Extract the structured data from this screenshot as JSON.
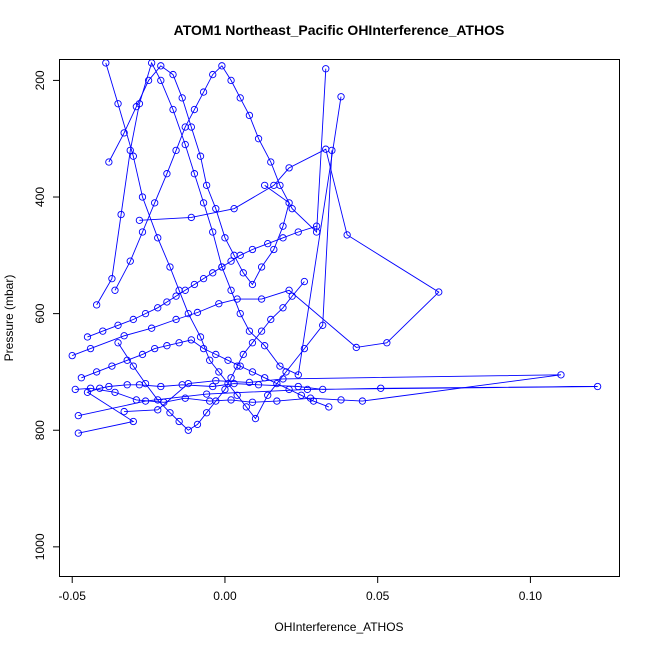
{
  "chart_data": {
    "type": "line",
    "title": "ATOM1 Northeast_Pacific OHInterference_ATHOS",
    "xlabel": "OHInterference_ATHOS",
    "ylabel": "Pressure (mbar)",
    "xlim": [
      -0.054,
      0.129
    ],
    "ylim": [
      1050,
      165
    ],
    "y_reversed": true,
    "x_ticks": [
      -0.05,
      0.0,
      0.05,
      0.1
    ],
    "x_tick_labels": [
      "-0.05",
      "0.00",
      "0.05",
      "0.10"
    ],
    "y_ticks": [
      200,
      400,
      600,
      800,
      1000
    ],
    "y_tick_labels": [
      "200",
      "400",
      "600",
      "800",
      "1000"
    ],
    "grid": false,
    "series_color": "#0000ff",
    "marker": "open-circle",
    "series": [
      {
        "x": [
          -0.048,
          -0.03,
          -0.045,
          -0.041,
          -0.038,
          -0.032,
          -0.028,
          -0.021,
          -0.014,
          -0.004,
          0.003,
          0.011,
          0.024,
          0.032,
          0.051,
          0.122,
          0.027,
          -0.006,
          -0.026,
          -0.048
        ],
        "y": [
          805,
          785,
          735,
          728,
          725,
          722,
          722,
          725,
          722,
          725,
          720,
          722,
          725,
          730,
          728,
          725,
          730,
          738,
          750,
          775
        ]
      },
      {
        "x": [
          -0.049,
          -0.044,
          -0.036,
          -0.029,
          -0.02,
          -0.013,
          -0.005,
          0.002,
          0.009,
          0.017,
          0.028,
          0.038,
          0.045,
          0.11,
          0.019,
          0.008,
          -0.003,
          -0.012,
          -0.022,
          -0.033
        ],
        "y": [
          730,
          728,
          735,
          748,
          752,
          745,
          750,
          748,
          752,
          750,
          745,
          748,
          750,
          705,
          712,
          718,
          715,
          720,
          765,
          768
        ]
      },
      {
        "x": [
          -0.05,
          -0.044,
          -0.033,
          -0.024,
          -0.016,
          -0.009,
          -0.002,
          0.004,
          0.012,
          0.021,
          0.043,
          0.053,
          0.07,
          0.04,
          0.033,
          0.021,
          0.016,
          0.003,
          -0.011,
          -0.028
        ],
        "y": [
          672,
          660,
          638,
          625,
          610,
          598,
          583,
          575,
          575,
          560,
          658,
          650,
          563,
          465,
          318,
          350,
          380,
          420,
          435,
          440
        ]
      },
      {
        "x": [
          -0.042,
          -0.037,
          -0.034,
          -0.031,
          -0.028,
          -0.024,
          -0.021,
          -0.017,
          -0.013,
          -0.01,
          -0.007,
          -0.004,
          -0.001,
          0.002,
          0.005,
          0.008,
          0.013,
          0.018,
          0.024,
          0.038
        ],
        "y": [
          585,
          540,
          430,
          320,
          240,
          170,
          200,
          250,
          310,
          360,
          410,
          460,
          520,
          560,
          600,
          630,
          655,
          690,
          705,
          228
        ]
      },
      {
        "x": [
          -0.039,
          -0.035,
          -0.03,
          -0.027,
          -0.022,
          -0.018,
          -0.015,
          -0.012,
          -0.008,
          -0.005,
          -0.002,
          0.001,
          0.004,
          0.007,
          0.01,
          0.014,
          0.02,
          0.026,
          0.032,
          0.035
        ],
        "y": [
          170,
          240,
          330,
          400,
          470,
          520,
          560,
          600,
          640,
          680,
          700,
          720,
          740,
          760,
          780,
          740,
          700,
          660,
          620,
          320
        ]
      },
      {
        "x": [
          -0.038,
          -0.033,
          -0.029,
          -0.025,
          -0.021,
          -0.017,
          -0.014,
          -0.011,
          -0.008,
          -0.006,
          -0.003,
          0.0,
          0.003,
          0.006,
          0.009,
          0.012,
          0.016,
          0.019,
          0.021,
          0.013
        ],
        "y": [
          340,
          290,
          245,
          200,
          175,
          190,
          230,
          280,
          330,
          380,
          420,
          470,
          500,
          530,
          550,
          520,
          490,
          450,
          410,
          380
        ]
      },
      {
        "x": [
          -0.036,
          -0.031,
          -0.027,
          -0.023,
          -0.019,
          -0.016,
          -0.013,
          -0.01,
          -0.007,
          -0.004,
          -0.001,
          0.002,
          0.005,
          0.008,
          0.011,
          0.015,
          0.018,
          0.022,
          0.03,
          0.033
        ],
        "y": [
          560,
          510,
          460,
          410,
          360,
          320,
          280,
          250,
          220,
          190,
          175,
          200,
          230,
          260,
          300,
          340,
          380,
          420,
          460,
          180
        ]
      },
      {
        "x": [
          -0.035,
          -0.03,
          -0.026,
          -0.022,
          -0.018,
          -0.015,
          -0.012,
          -0.009,
          -0.006,
          -0.003,
          0.0,
          0.002,
          0.004,
          0.006,
          0.009,
          0.012,
          0.015,
          0.019,
          0.022,
          0.026
        ],
        "y": [
          650,
          690,
          720,
          748,
          770,
          785,
          800,
          790,
          770,
          750,
          730,
          710,
          690,
          670,
          650,
          630,
          610,
          590,
          570,
          545
        ]
      },
      {
        "x": [
          -0.045,
          -0.04,
          -0.035,
          -0.03,
          -0.026,
          -0.022,
          -0.019,
          -0.016,
          -0.013,
          -0.01,
          -0.007,
          -0.004,
          -0.001,
          0.002,
          0.005,
          0.009,
          0.014,
          0.019,
          0.024,
          0.03
        ],
        "y": [
          640,
          630,
          620,
          610,
          600,
          590,
          580,
          570,
          560,
          550,
          540,
          530,
          520,
          510,
          500,
          490,
          480,
          470,
          460,
          450
        ]
      },
      {
        "x": [
          -0.047,
          -0.042,
          -0.037,
          -0.032,
          -0.027,
          -0.023,
          -0.019,
          -0.015,
          -0.011,
          -0.007,
          -0.003,
          0.001,
          0.005,
          0.009,
          0.013,
          0.017,
          0.021,
          0.025,
          0.029,
          0.034
        ],
        "y": [
          710,
          700,
          690,
          680,
          670,
          660,
          655,
          650,
          645,
          660,
          670,
          680,
          690,
          700,
          710,
          720,
          730,
          740,
          750,
          760
        ]
      }
    ]
  }
}
